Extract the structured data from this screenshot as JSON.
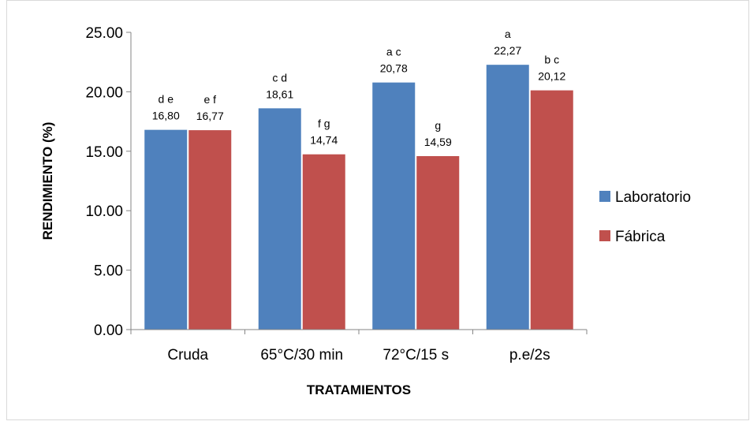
{
  "chart_data": {
    "type": "bar",
    "title": "",
    "xlabel": "TRATAMIENTOS",
    "ylabel": "RENDIMIENTO (%)",
    "ylim": [
      0,
      25
    ],
    "yticks": [
      "0.00",
      "5.00",
      "10.00",
      "15.00",
      "20.00",
      "25.00"
    ],
    "yticks_values": [
      0,
      5,
      10,
      15,
      20,
      25
    ],
    "grid": false,
    "legend_position": "right",
    "categories": [
      "Cruda",
      "65°C/30 min",
      "72°C/15 s",
      "p.e/2s"
    ],
    "series": [
      {
        "name": "Laboratorio",
        "color": "#4F81BD",
        "values": [
          16.8,
          18.61,
          20.78,
          22.27
        ],
        "value_labels": [
          "16,80",
          "18,61",
          "20,78",
          "22,27"
        ],
        "letters": [
          "d e",
          "c d",
          "a c",
          "a"
        ]
      },
      {
        "name": "Fábrica",
        "color": "#C0504D",
        "values": [
          16.77,
          14.74,
          14.59,
          20.12
        ],
        "value_labels": [
          "16,77",
          "14,74",
          "14,59",
          "20,12"
        ],
        "letters": [
          "e f",
          "f g",
          "g",
          "b c"
        ]
      }
    ]
  }
}
